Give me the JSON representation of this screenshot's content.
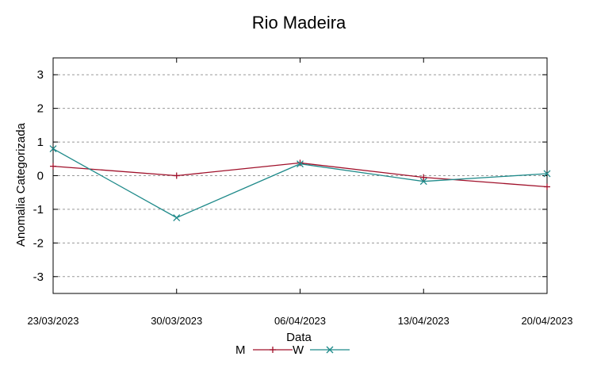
{
  "chart_data": {
    "type": "line",
    "title": "Rio Madeira",
    "xlabel": "Data",
    "ylabel": "Anomalia Categorizada",
    "categories": [
      "23/03/2023",
      "30/03/2023",
      "06/04/2023",
      "13/04/2023",
      "20/04/2023"
    ],
    "yticks": [
      "3",
      "2",
      "1",
      "0",
      "-1",
      "-2",
      "-3"
    ],
    "ylim": [
      -3.5,
      3.5
    ],
    "grid": true,
    "legend_position": "bottom-center",
    "series": [
      {
        "name": "M",
        "color": "#a0102a",
        "marker": "plus",
        "values": [
          0.28,
          0.0,
          0.38,
          -0.05,
          -0.33
        ]
      },
      {
        "name": "W",
        "color": "#1f8a8a",
        "marker": "x",
        "values": [
          0.8,
          -1.25,
          0.35,
          -0.17,
          0.06
        ]
      }
    ]
  }
}
